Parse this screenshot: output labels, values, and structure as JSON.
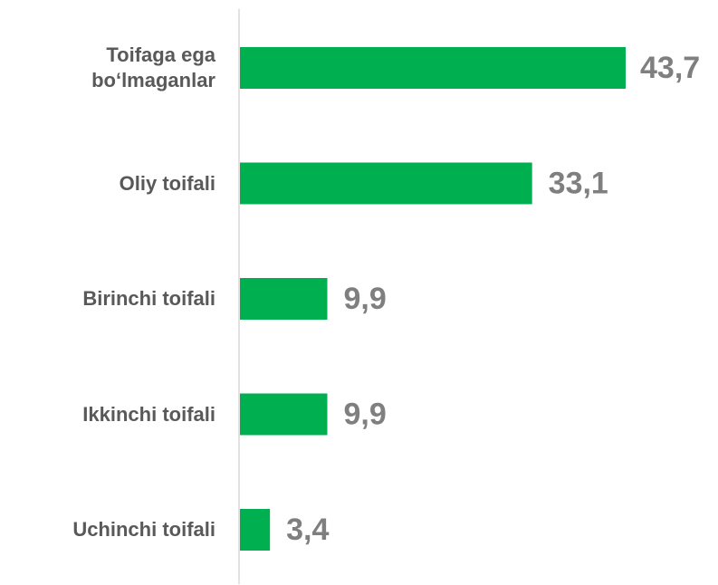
{
  "chart_data": {
    "type": "bar",
    "orientation": "horizontal",
    "categories": [
      "Toifaga ega bo‘lmaganlar",
      "Oliy toifali",
      "Birinchi toifali",
      "Ikkinchi toifali",
      "Uchinchi toifali"
    ],
    "values": [
      43.7,
      33.1,
      9.9,
      9.9,
      3.4
    ],
    "value_labels": [
      "43,7",
      "33,1",
      "9,9",
      "9,9",
      "3,4"
    ],
    "color": "#00b050"
  }
}
